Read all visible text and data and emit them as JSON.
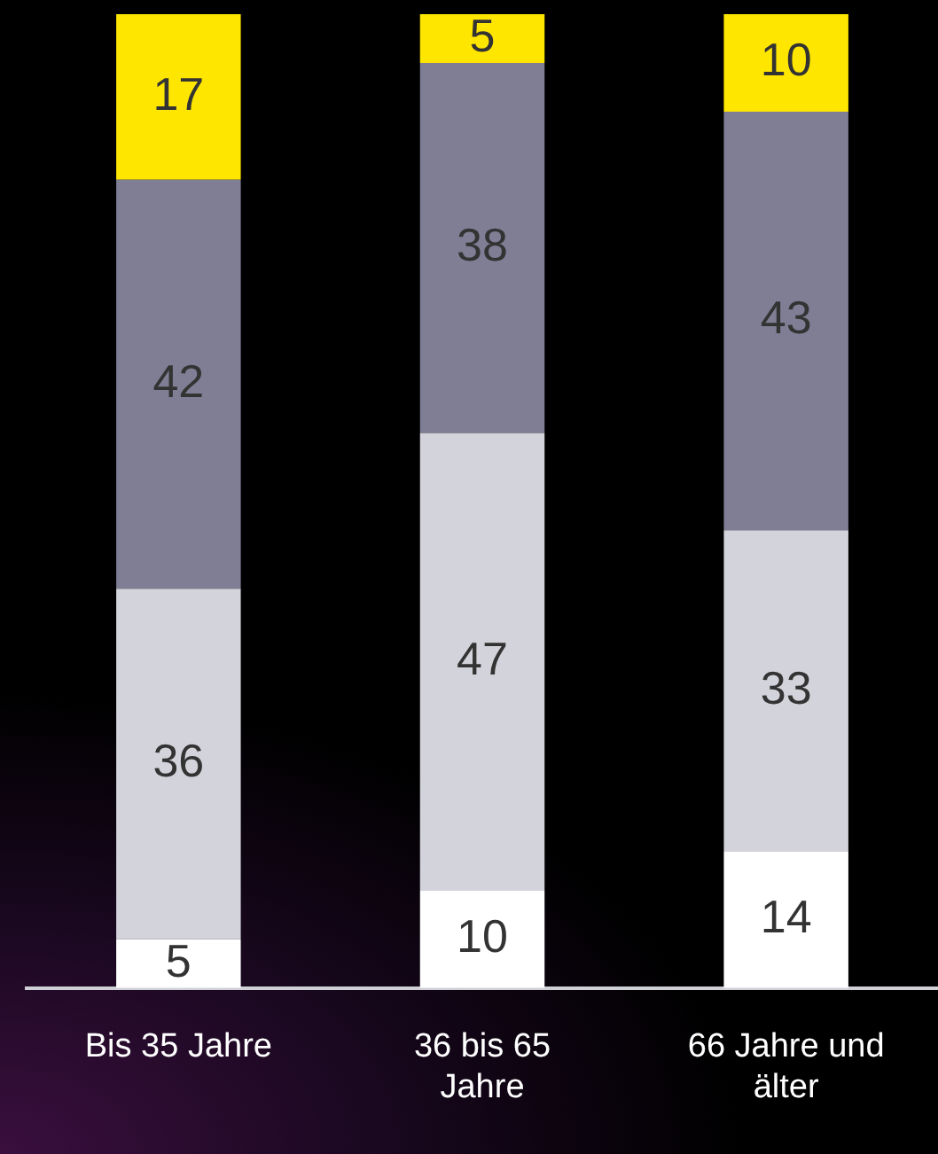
{
  "chart_data": {
    "type": "bar",
    "stacked": true,
    "categories": [
      "Bis 35 Jahre",
      "36 bis 65 Jahre",
      "66 Jahre und älter"
    ],
    "series": [
      {
        "color": "#ffffff",
        "values": [
          5,
          10,
          14
        ]
      },
      {
        "color": "#d3d3db",
        "values": [
          36,
          47,
          33
        ]
      },
      {
        "color": "#7f7e95",
        "values": [
          42,
          38,
          43
        ]
      },
      {
        "color": "#ffe600",
        "values": [
          17,
          5,
          10
        ]
      }
    ],
    "ylim": [
      0,
      100
    ],
    "data_labels": true,
    "legend": false
  }
}
